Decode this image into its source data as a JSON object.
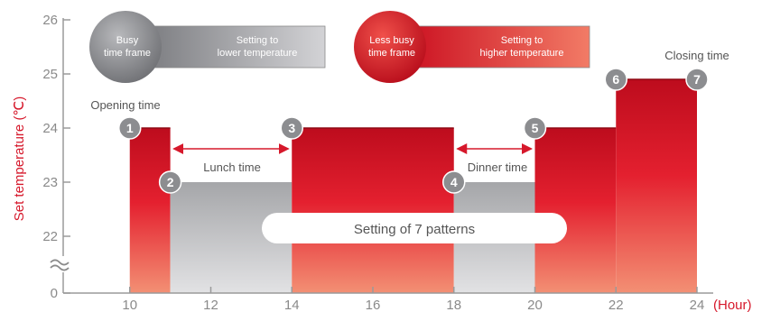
{
  "chart_data": {
    "type": "bar",
    "ylabel": "Set temperature (℃)",
    "x_unit": "(Hour)",
    "x_ticks": [
      10,
      12,
      14,
      16,
      18,
      20,
      22,
      24
    ],
    "xlim": [
      8,
      24
    ],
    "y_ticks": [
      0,
      22,
      23,
      24,
      25,
      26
    ],
    "ylim": [
      21.3,
      26
    ],
    "axis_break": true,
    "segments": [
      {
        "start": 10,
        "end": 11,
        "value": 24,
        "kind": "busy"
      },
      {
        "start": 11,
        "end": 14,
        "value": 23,
        "kind": "less-busy"
      },
      {
        "start": 14,
        "end": 18,
        "value": 24,
        "kind": "busy"
      },
      {
        "start": 18,
        "end": 20,
        "value": 23,
        "kind": "less-busy"
      },
      {
        "start": 20,
        "end": 22,
        "value": 24,
        "kind": "busy"
      },
      {
        "start": 22,
        "end": 24,
        "value": 24.9,
        "kind": "busy"
      }
    ],
    "markers": [
      {
        "label": "1",
        "x": 10,
        "y": 24
      },
      {
        "label": "2",
        "x": 11,
        "y": 23
      },
      {
        "label": "3",
        "x": 14,
        "y": 24
      },
      {
        "label": "4",
        "x": 18,
        "y": 23
      },
      {
        "label": "5",
        "x": 20,
        "y": 24
      },
      {
        "label": "6",
        "x": 22,
        "y": 24.9
      },
      {
        "label": "7",
        "x": 24,
        "y": 24.9
      }
    ],
    "annotations": {
      "opening": "Opening time",
      "lunch": "Lunch time",
      "dinner": "Dinner time",
      "closing": "Closing time",
      "patterns": "Setting of 7 patterns"
    },
    "legend": [
      {
        "circle_line1": "Busy",
        "circle_line2": "time frame",
        "bar_line1": "Setting to",
        "bar_line2": "lower temperature",
        "kind": "gray"
      },
      {
        "circle_line1": "Less busy",
        "circle_line2": "time frame",
        "bar_line1": "Setting to",
        "bar_line2": "higher temperature",
        "kind": "red"
      }
    ],
    "colors": {
      "busy_top": "#bf0d1e",
      "busy_mid": "#e01e30",
      "busy_bottom": "#f28a72",
      "less_busy_top": "#a9aaad",
      "less_busy_bottom": "#dcdcde",
      "axis": "#9a9a9a",
      "accent": "#d6182b"
    }
  }
}
